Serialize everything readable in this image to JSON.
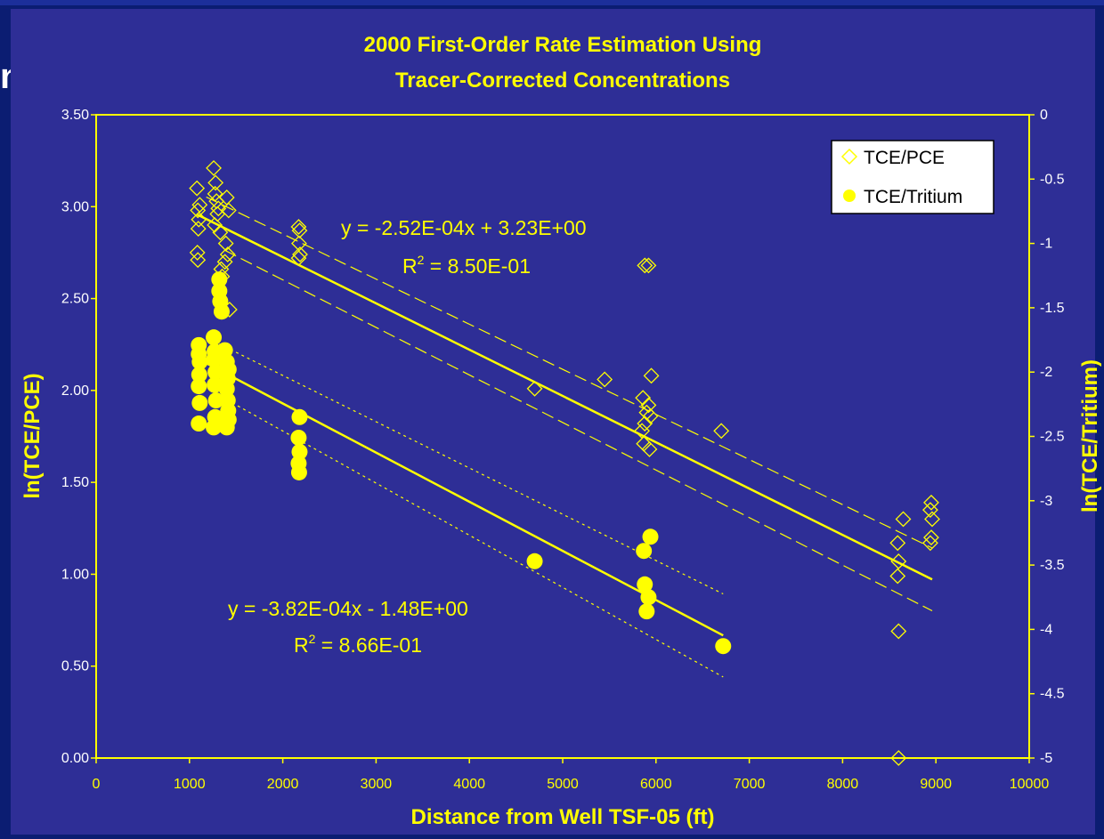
{
  "slide": {
    "title_fragment": "n"
  },
  "chart_data": {
    "type": "scatter",
    "title": "2000 First-Order Rate Estimation Using",
    "subtitle": "Tracer-Corrected Concentrations",
    "xlabel": "Distance from Well TSF-05 (ft)",
    "ylabel": "ln(TCE/PCE)",
    "y2label": "ln(TCE/Tritium)",
    "xlim": [
      0,
      10000
    ],
    "ylim": [
      0,
      3.5
    ],
    "y2lim": [
      -5,
      0
    ],
    "x_ticks": [
      "0",
      "1000",
      "2000",
      "3000",
      "4000",
      "5000",
      "6000",
      "7000",
      "8000",
      "9000",
      "10000"
    ],
    "y_ticks": [
      "0.00",
      "0.50",
      "1.00",
      "1.50",
      "2.00",
      "2.50",
      "3.00",
      "3.50"
    ],
    "y2_ticks": [
      "-5",
      "-4.5",
      "-4",
      "-3.5",
      "-3",
      "-2.5",
      "-2",
      "-1.5",
      "-1",
      "-0.5",
      "0"
    ],
    "grid": false,
    "legend_position": "top-right",
    "colors": {
      "plot_bg": "#2e2e96",
      "accent": "#ffff00",
      "slide_bg": "#0b1d72"
    },
    "series": [
      {
        "name": "TCE/PCE",
        "marker": "diamond-open",
        "axis": "left",
        "points": [
          [
            1080,
            3.1
          ],
          [
            1090,
            2.98
          ],
          [
            1100,
            2.93
          ],
          [
            1095,
            2.88
          ],
          [
            1085,
            2.75
          ],
          [
            1090,
            2.71
          ],
          [
            1110,
            3.01
          ],
          [
            1260,
            3.21
          ],
          [
            1280,
            3.13
          ],
          [
            1275,
            3.07
          ],
          [
            1290,
            3.03
          ],
          [
            1300,
            2.96
          ],
          [
            1270,
            2.9
          ],
          [
            1310,
            2.99
          ],
          [
            1330,
            2.86
          ],
          [
            1340,
            2.66
          ],
          [
            1320,
            2.55
          ],
          [
            1380,
            2.7
          ],
          [
            1400,
            3.05
          ],
          [
            1420,
            2.98
          ],
          [
            1410,
            2.74
          ],
          [
            1430,
            2.44
          ],
          [
            1350,
            2.62
          ],
          [
            1390,
            2.8
          ],
          [
            2170,
            2.89
          ],
          [
            2180,
            2.87
          ],
          [
            2175,
            2.8
          ],
          [
            2185,
            2.74
          ],
          [
            2170,
            2.72
          ],
          [
            4700,
            2.01
          ],
          [
            5450,
            2.06
          ],
          [
            5880,
            2.68
          ],
          [
            5920,
            2.68
          ],
          [
            5860,
            1.96
          ],
          [
            5900,
            1.88
          ],
          [
            5880,
            1.82
          ],
          [
            5850,
            1.78
          ],
          [
            5950,
            2.08
          ],
          [
            5920,
            1.92
          ],
          [
            5940,
            1.86
          ],
          [
            5870,
            1.71
          ],
          [
            5930,
            1.68
          ],
          [
            6700,
            1.78
          ],
          [
            8590,
            1.17
          ],
          [
            8600,
            1.07
          ],
          [
            8590,
            0.99
          ],
          [
            8650,
            1.3
          ],
          [
            8600,
            0.69
          ],
          [
            8600,
            0.0
          ],
          [
            8950,
            1.39
          ],
          [
            8940,
            1.35
          ],
          [
            8960,
            1.3
          ],
          [
            8950,
            1.2
          ],
          [
            8940,
            1.17
          ]
        ],
        "trend": {
          "equation": "y = -2.52E-04x + 3.23E+00",
          "r2_label": "R",
          "r2_value": " = 8.50E-01",
          "slope": -0.000252,
          "intercept": 3.23
        }
      },
      {
        "name": "TCE/Tritium",
        "marker": "circle-filled",
        "axis": "right",
        "points": [
          [
            1100,
            -1.79
          ],
          [
            1100,
            -1.86
          ],
          [
            1110,
            -1.92
          ],
          [
            1105,
            -2.02
          ],
          [
            1100,
            -2.11
          ],
          [
            1110,
            -2.24
          ],
          [
            1100,
            -2.4
          ],
          [
            1260,
            -1.73
          ],
          [
            1270,
            -1.84
          ],
          [
            1265,
            -1.9
          ],
          [
            1280,
            -2.0
          ],
          [
            1270,
            -2.1
          ],
          [
            1285,
            -2.22
          ],
          [
            1275,
            -2.35
          ],
          [
            1260,
            -2.43
          ],
          [
            1320,
            -1.28
          ],
          [
            1320,
            -1.37
          ],
          [
            1330,
            -1.45
          ],
          [
            1345,
            -1.53
          ],
          [
            1380,
            -1.83
          ],
          [
            1400,
            -1.92
          ],
          [
            1420,
            -1.98
          ],
          [
            1410,
            -2.05
          ],
          [
            1400,
            -2.13
          ],
          [
            1410,
            -2.22
          ],
          [
            1415,
            -2.3
          ],
          [
            1420,
            -2.37
          ],
          [
            1400,
            -2.43
          ],
          [
            2180,
            -2.35
          ],
          [
            2170,
            -2.51
          ],
          [
            2180,
            -2.62
          ],
          [
            2170,
            -2.71
          ],
          [
            2175,
            -2.78
          ],
          [
            4700,
            -3.47
          ],
          [
            5870,
            -3.39
          ],
          [
            5940,
            -3.28
          ],
          [
            5880,
            -3.65
          ],
          [
            5920,
            -3.75
          ],
          [
            5900,
            -3.86
          ],
          [
            6720,
            -4.13
          ]
        ],
        "trend": {
          "equation": "y = -3.82E-04x - 1.48E+00",
          "r2_label": "R",
          "r2_value": " = 8.66E-01",
          "slope": -0.000382,
          "intercept": -1.48
        }
      }
    ]
  }
}
